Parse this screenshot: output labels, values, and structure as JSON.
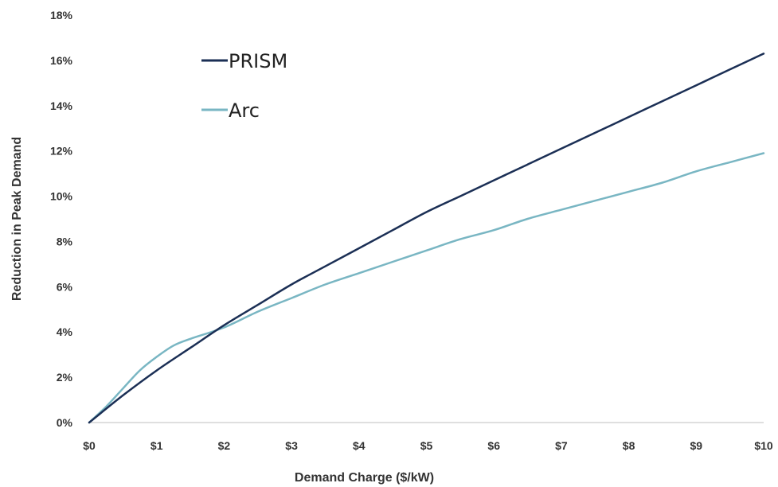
{
  "chart_data": {
    "type": "line",
    "xlabel": "Demand Charge ($/kW)",
    "ylabel": "Reduction in Peak Demand",
    "xlim": [
      0,
      10
    ],
    "ylim": [
      0,
      18
    ],
    "x_ticks": [
      "$0",
      "$1",
      "$2",
      "$3",
      "$4",
      "$5",
      "$6",
      "$7",
      "$8",
      "$9",
      "$10"
    ],
    "y_ticks": [
      "0%",
      "2%",
      "4%",
      "6%",
      "8%",
      "10%",
      "12%",
      "14%",
      "16%",
      "18%"
    ],
    "grid": false,
    "legend_position": "top-left",
    "series": [
      {
        "name": "PRISM",
        "color": "#1b2f55",
        "x": [
          0,
          0.5,
          1,
          1.5,
          2,
          2.5,
          3,
          3.5,
          4,
          4.5,
          5,
          5.5,
          6,
          6.5,
          7,
          7.5,
          8,
          8.5,
          9,
          9.5,
          10
        ],
        "y": [
          0,
          1.2,
          2.3,
          3.3,
          4.3,
          5.2,
          6.1,
          6.9,
          7.7,
          8.5,
          9.3,
          10.0,
          10.7,
          11.4,
          12.1,
          12.8,
          13.5,
          14.2,
          14.9,
          15.6,
          16.3
        ]
      },
      {
        "name": "Arc",
        "color": "#79b6c3",
        "x": [
          0,
          0.25,
          0.5,
          0.75,
          1,
          1.25,
          1.5,
          2,
          2.5,
          3,
          3.5,
          4,
          4.5,
          5,
          5.5,
          6,
          6.5,
          7,
          7.5,
          8,
          8.5,
          9,
          9.5,
          10
        ],
        "y": [
          0,
          0.7,
          1.5,
          2.3,
          2.9,
          3.4,
          3.7,
          4.2,
          4.9,
          5.5,
          6.1,
          6.6,
          7.1,
          7.6,
          8.1,
          8.5,
          9.0,
          9.4,
          9.8,
          10.2,
          10.6,
          11.1,
          11.5,
          11.9
        ]
      }
    ]
  }
}
